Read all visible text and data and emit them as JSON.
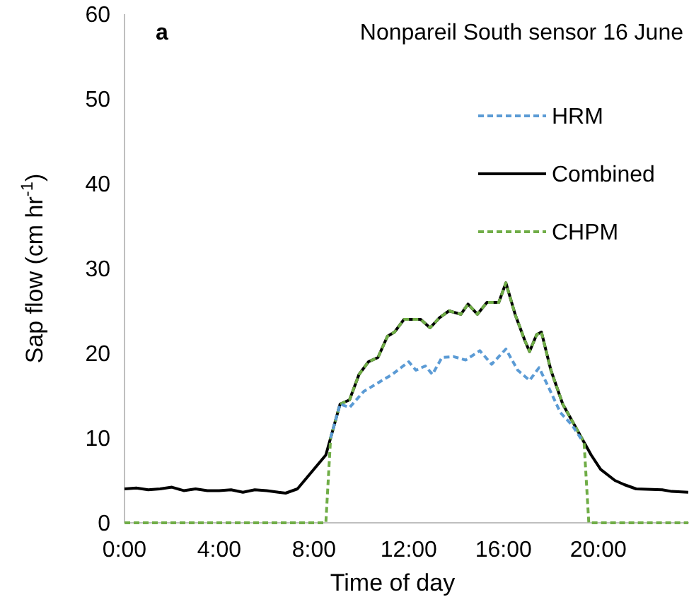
{
  "chart_data": {
    "type": "line",
    "title": "Nonpareil South sensor 16 June",
    "xlabel": "Time of day",
    "ylabel": "Sap flow (cm hr$^{-1}$)",
    "annotations": [
      "a"
    ],
    "xlim": [
      0,
      23.83
    ],
    "xticks": [
      {
        "value": 0,
        "label": "0:00"
      },
      {
        "value": 4,
        "label": "4:00"
      },
      {
        "value": 8,
        "label": "8:00"
      },
      {
        "value": 12,
        "label": "12:00"
      },
      {
        "value": 16,
        "label": "16:00"
      },
      {
        "value": 20,
        "label": "20:00"
      }
    ],
    "ylim": [
      0,
      60
    ],
    "yticks": [
      0,
      10,
      20,
      30,
      40,
      50,
      60
    ],
    "grid": false,
    "legend": "top right",
    "marker": "none",
    "series": [
      {
        "name": "HRM",
        "color": "#5b9bd5",
        "line_style": "dashed",
        "x": [
          8.7,
          9.1,
          9.5,
          10.1,
          10.7,
          11.3,
          12,
          12.3,
          12.7,
          13,
          13.4,
          13.9,
          14.4,
          15,
          15.5,
          16.1,
          16.6,
          17.1,
          17.5,
          17.9,
          18.4,
          18.9,
          19.3
        ],
        "values": [
          10,
          14,
          13.6,
          15.5,
          16.5,
          17.5,
          19,
          18,
          18.5,
          17.5,
          19.5,
          19.6,
          19.2,
          20.3,
          18.7,
          20.5,
          18,
          16.8,
          18.3,
          16,
          13,
          11.5,
          9.8
        ]
      },
      {
        "name": "Combined",
        "color": "#000000",
        "line_style": "solid",
        "x": [
          0,
          0.5,
          1,
          1.5,
          2,
          2.5,
          3,
          3.5,
          4,
          4.5,
          5,
          5.5,
          6,
          6.5,
          6.8,
          7.3,
          7.9,
          8.5,
          8.7,
          9.1,
          9.5,
          9.9,
          10.3,
          10.7,
          11.1,
          11.4,
          11.8,
          12.5,
          12.9,
          13.3,
          13.7,
          14.2,
          14.5,
          14.9,
          15.3,
          15.8,
          16.1,
          16.5,
          16.9,
          17.1,
          17.4,
          17.6,
          18,
          18.5,
          18.9,
          19.4,
          19.7,
          20.1,
          20.7,
          21.1,
          21.6,
          22.7,
          23.1,
          23.8
        ],
        "values": [
          4,
          4.1,
          3.9,
          4,
          4.2,
          3.8,
          4,
          3.8,
          3.8,
          3.9,
          3.6,
          3.9,
          3.8,
          3.6,
          3.5,
          4,
          6,
          8,
          10,
          14,
          14.5,
          17.5,
          19,
          19.5,
          22,
          22.5,
          24,
          24,
          23,
          24.2,
          25,
          24.6,
          25.8,
          24.6,
          26,
          26,
          28.3,
          24.5,
          21.5,
          20.2,
          22.2,
          22.5,
          18,
          14,
          12,
          9.5,
          8,
          6.3,
          5,
          4.5,
          4,
          3.9,
          3.7,
          3.6
        ]
      },
      {
        "name": "CHPM",
        "color": "#70ad47",
        "line_style": "dashed",
        "x": [
          0,
          8.5,
          8.7,
          9.1,
          9.5,
          9.9,
          10.3,
          10.7,
          11.1,
          11.4,
          11.8,
          12.5,
          12.9,
          13.3,
          13.7,
          14.2,
          14.5,
          14.9,
          15.3,
          15.8,
          16.1,
          16.5,
          16.9,
          17.1,
          17.4,
          17.6,
          18,
          18.5,
          18.9,
          19.4,
          19.6,
          23.8
        ],
        "values": [
          0,
          0,
          10,
          14,
          14.5,
          17.5,
          19,
          19.5,
          22,
          22.5,
          24,
          24,
          23,
          24.2,
          25,
          24.6,
          25.8,
          24.6,
          26,
          26,
          28.3,
          24.5,
          21.5,
          20.2,
          22.2,
          22.5,
          18,
          14,
          12,
          9.5,
          0,
          0
        ]
      }
    ]
  }
}
